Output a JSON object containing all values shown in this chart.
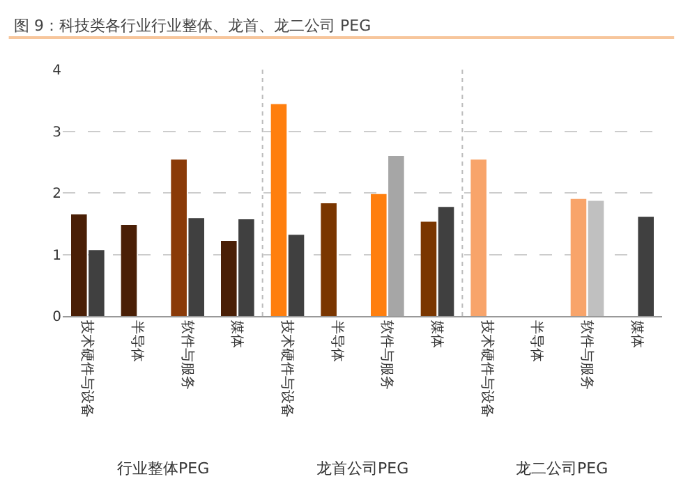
{
  "chart_data": {
    "type": "bar",
    "title": "图 9：科技类各行业行业整体、龙首、龙二公司 PEG",
    "categories": [
      "技术硬件与设备",
      "半导体",
      "软件与服务",
      "媒体",
      "技术硬件与设备",
      "半导体",
      "软件与服务",
      "媒体",
      "技术硬件与设备",
      "半导体",
      "软件与服务",
      "媒体"
    ],
    "series": [
      {
        "colors": [
          "#4a1f06",
          "#4a1f06",
          "#8a3a08",
          "#4a1f06",
          "#ff7f0e",
          "#7a3600",
          "#ff7f0e",
          "#7a3600",
          "#f8a46a",
          "#f8a46a",
          "#f8a46a",
          "#f8a46a"
        ],
        "values": [
          1.65,
          1.48,
          2.54,
          1.22,
          3.44,
          1.83,
          1.98,
          1.53,
          2.54,
          null,
          1.9,
          null
        ]
      },
      {
        "colors": [
          "#404040",
          "#404040",
          "#404040",
          "#404040",
          "#404040",
          "#404040",
          "#a6a6a6",
          "#404040",
          "#404040",
          "#404040",
          "#c0c0c0",
          "#404040"
        ],
        "values": [
          1.07,
          null,
          1.59,
          1.57,
          1.32,
          null,
          2.6,
          1.77,
          null,
          null,
          1.87,
          1.61
        ]
      }
    ],
    "annotations": [
      "行业整体PEG",
      "龙首公司PEG",
      "龙二公司PEG"
    ],
    "ylim": [
      0,
      4
    ],
    "yticks": [
      0,
      1,
      2,
      3,
      4
    ],
    "grid": "y",
    "legend": false
  }
}
